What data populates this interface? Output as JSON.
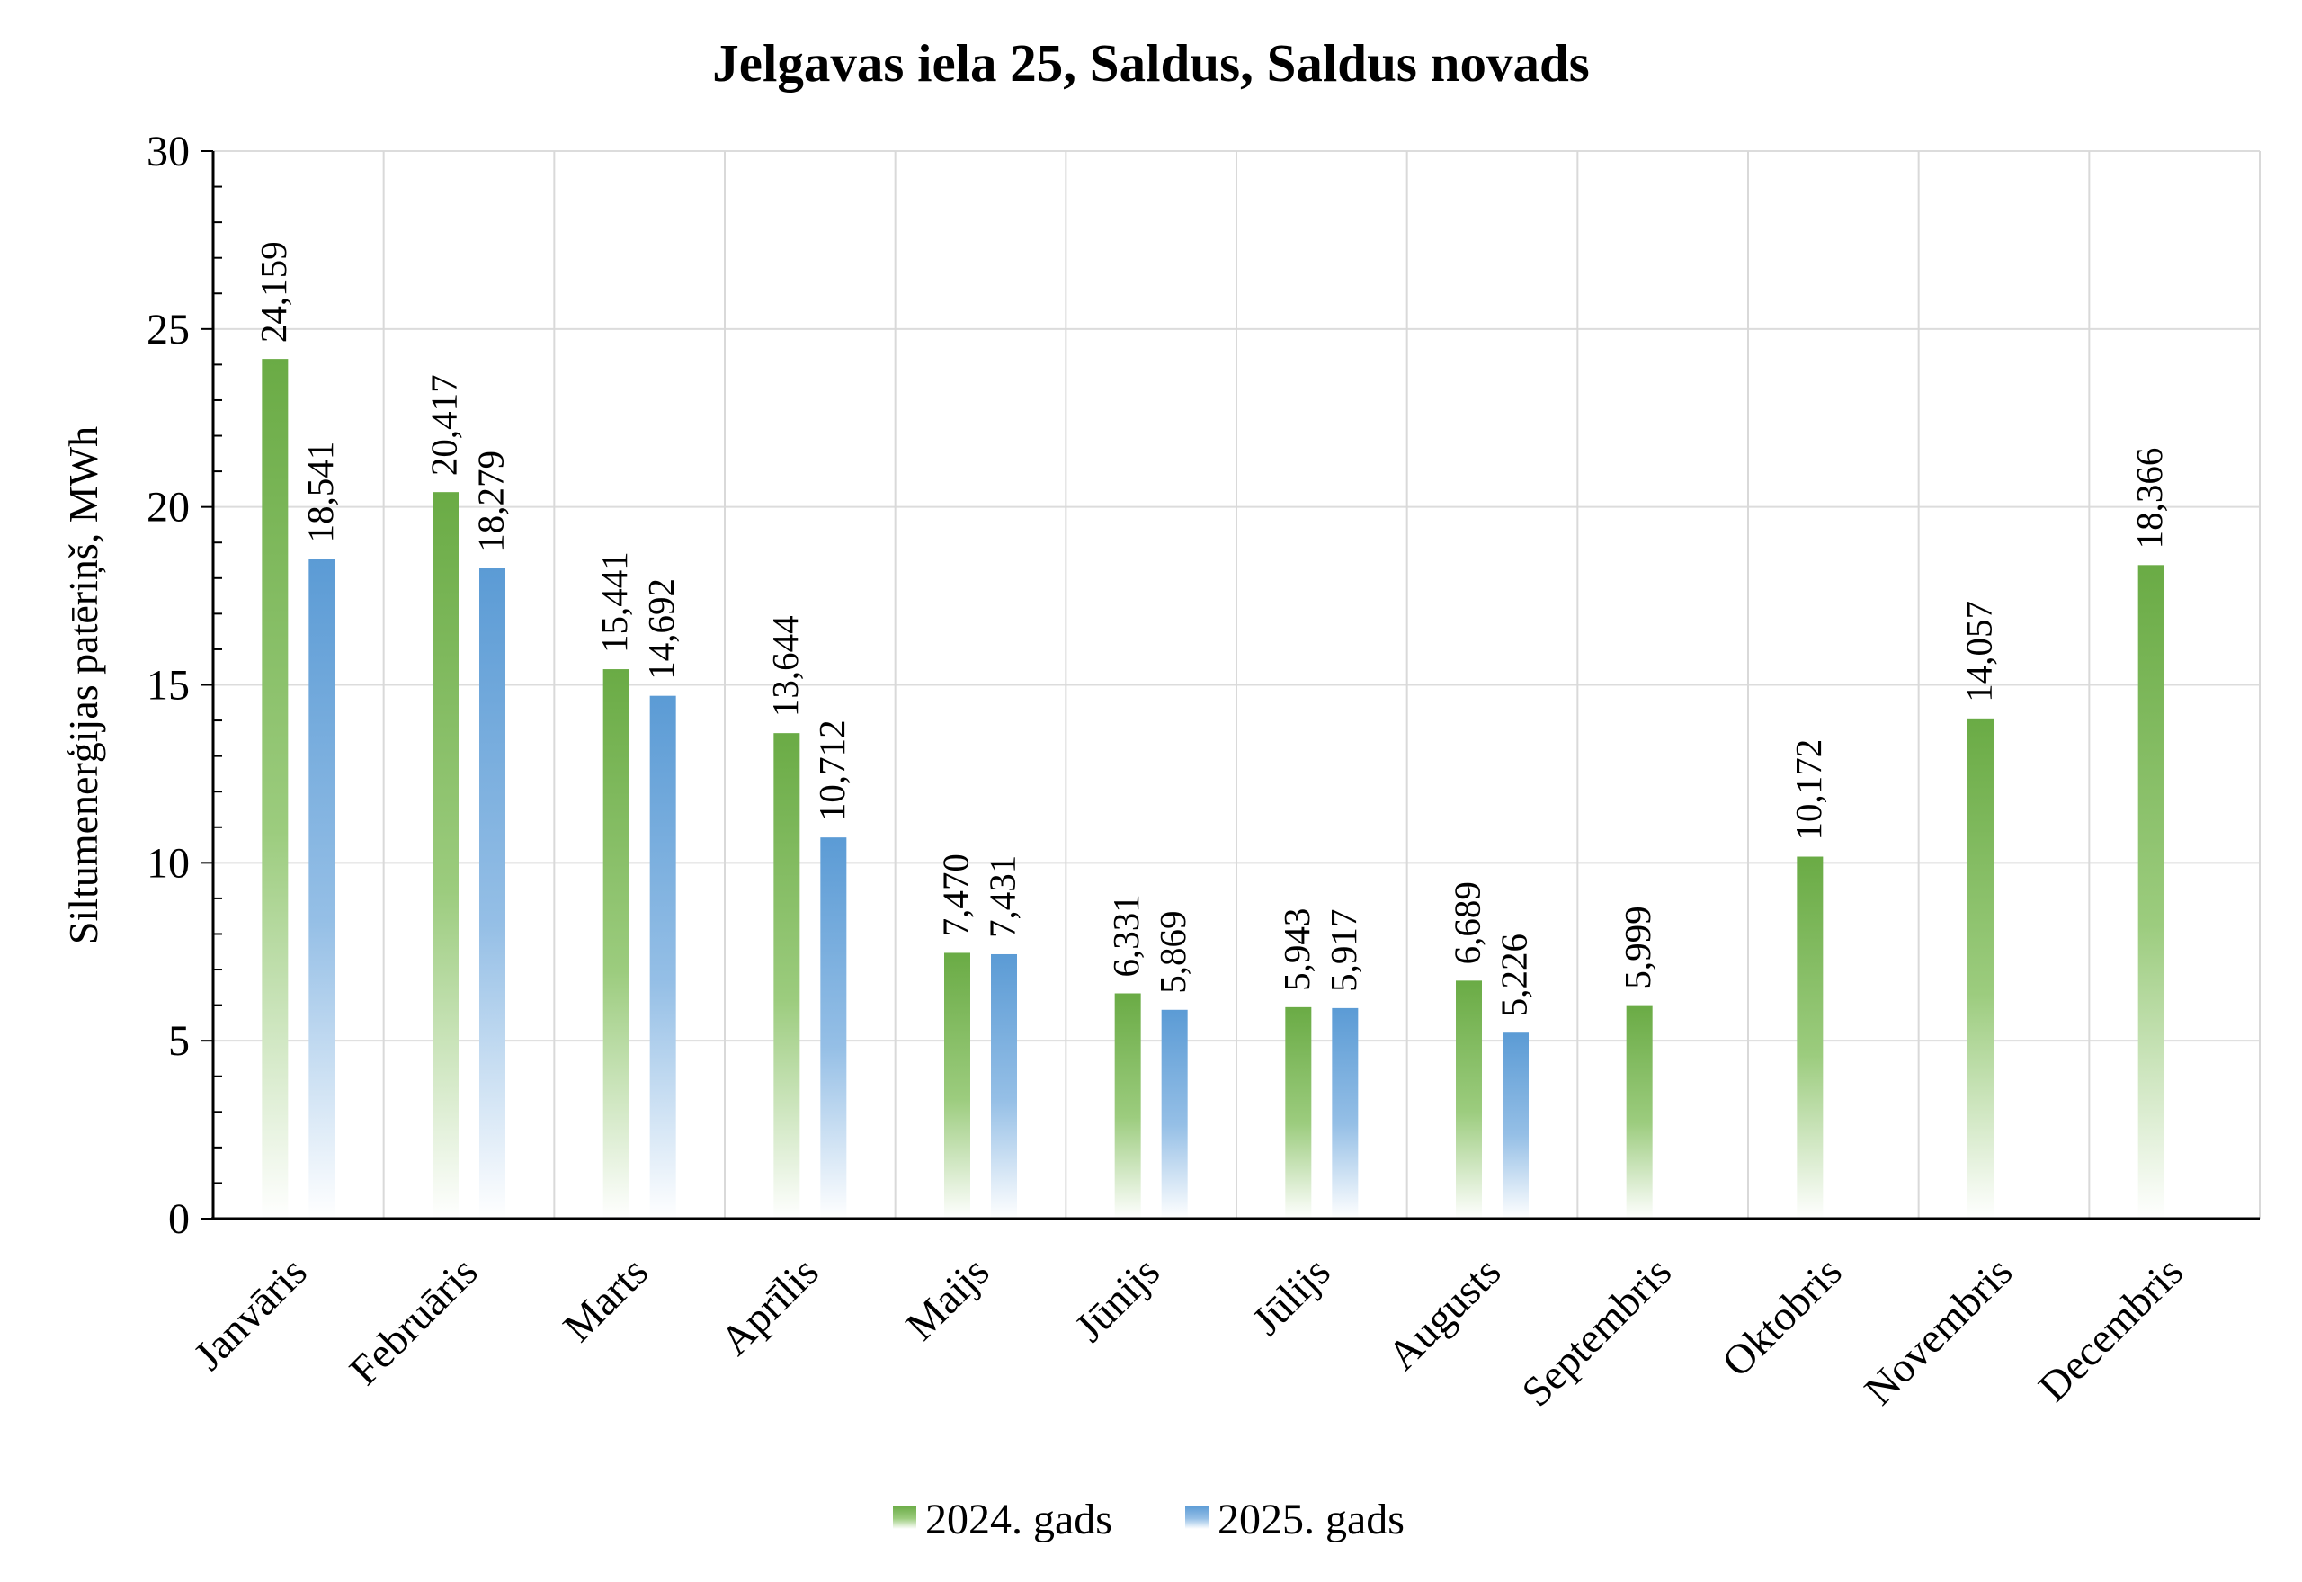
{
  "colors": {
    "series_2024": "#70ad47",
    "series_2025": "#5b9bd5"
  },
  "chart_data": {
    "type": "bar",
    "title": "Jelgavas iela 25, Saldus, Saldus novads",
    "ylabel": "Siltumenerģijas patēriņš, MWh",
    "xlabel": "",
    "ylim": [
      0,
      30
    ],
    "yticks": [
      0,
      5,
      10,
      15,
      20,
      25,
      30
    ],
    "grid": true,
    "legend_position": "bottom",
    "categories": [
      "Janvāris",
      "Februāris",
      "Marts",
      "Aprīlis",
      "Maijs",
      "Jūnijs",
      "Jūlijs",
      "Augusts",
      "Septembris",
      "Oktobris",
      "Novembris",
      "Decembris"
    ],
    "series": [
      {
        "name": "2024. gads",
        "values": [
          24.159,
          20.417,
          15.441,
          13.644,
          7.47,
          6.331,
          5.943,
          6.689,
          5.999,
          10.172,
          14.057,
          18.366
        ],
        "labels": [
          "24,159",
          "20,417",
          "15,441",
          "13,644",
          "7,470",
          "6,331",
          "5,943",
          "6,689",
          "5,999",
          "10,172",
          "14,057",
          "18,366"
        ]
      },
      {
        "name": "2025. gads",
        "values": [
          18.541,
          18.279,
          14.692,
          10.712,
          7.431,
          5.869,
          5.917,
          5.226,
          null,
          null,
          null,
          null
        ],
        "labels": [
          "18,541",
          "18,279",
          "14,692",
          "10,712",
          "7,431",
          "5,869",
          "5,917",
          "5,226",
          null,
          null,
          null,
          null
        ]
      }
    ]
  }
}
